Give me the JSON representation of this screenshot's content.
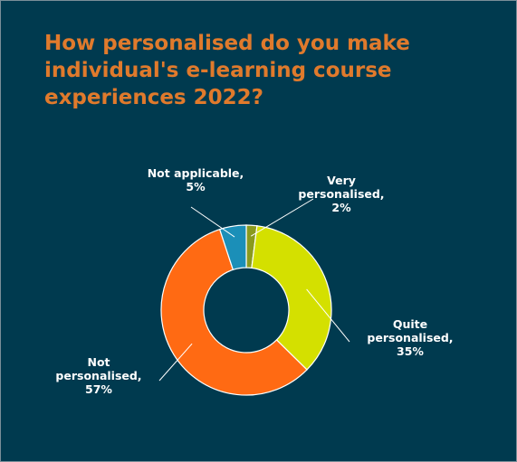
{
  "title_lines": [
    "How personalised do you make",
    "individual's e-learning course",
    "experiences 2022?"
  ],
  "chart_data": {
    "type": "pie",
    "donut": true,
    "title": "How personalised do you make individual's e-learning course experiences 2022?",
    "slices": [
      {
        "label": "Very personalised",
        "value": 2,
        "color": "#8a9a1e"
      },
      {
        "label": "Quite personalised",
        "value": 35,
        "color": "#d4e000"
      },
      {
        "label": "Not personalised",
        "value": 57,
        "color": "#ff6a13"
      },
      {
        "label": "Not applicable",
        "value": 5,
        "color": "#1b8fb8"
      }
    ],
    "data_labels": [
      {
        "lines": [
          "Very",
          "personalised,",
          "2%"
        ]
      },
      {
        "lines": [
          "Quite",
          "personalised,",
          "35%"
        ]
      },
      {
        "lines": [
          "Not",
          "personalised,",
          "57%"
        ]
      },
      {
        "lines": [
          "Not applicable,",
          "5%"
        ]
      }
    ],
    "legend": "none"
  }
}
